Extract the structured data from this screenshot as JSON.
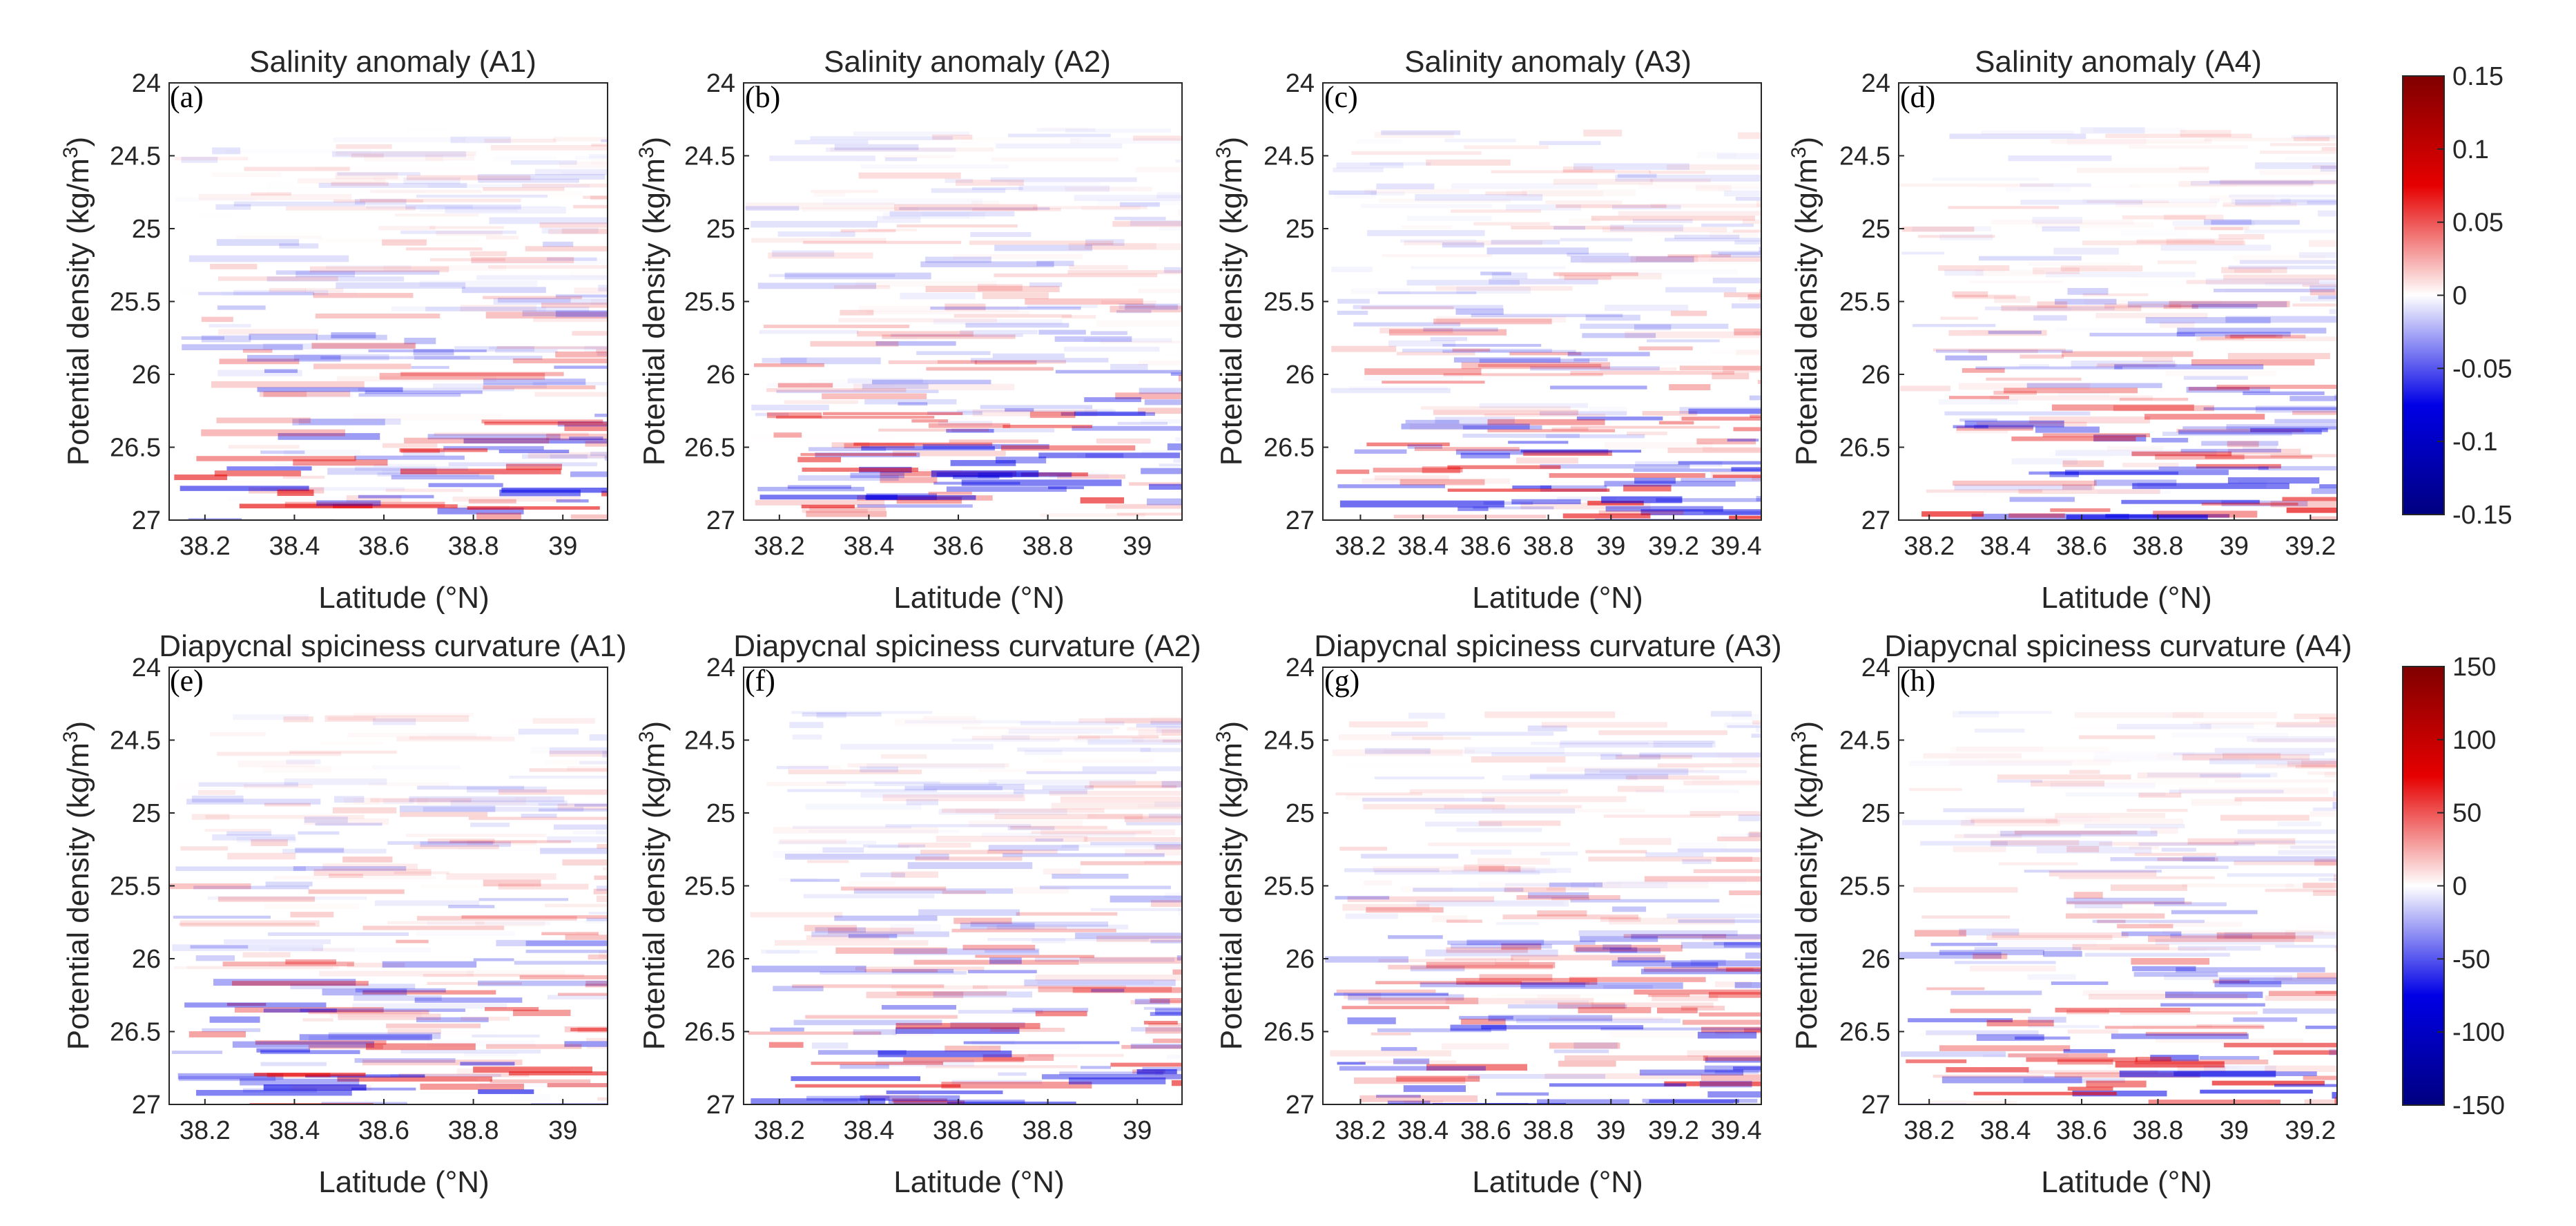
{
  "chart_data": [
    {
      "type": "heatmap",
      "panel": "(a)",
      "title": "Salinity anomaly (A1)",
      "xlabel": "Latitude (°N)",
      "ylabel": "Potential density (kg/m³)",
      "xlim": [
        38.12,
        39.1
      ],
      "ylim": [
        24,
        27
      ],
      "xticks": [
        "38.2",
        "38.4",
        "38.6",
        "38.8",
        "39"
      ],
      "yticks": [
        "24",
        "24.5",
        "25",
        "25.5",
        "26",
        "26.5",
        "27"
      ],
      "colorbar": "salinity"
    },
    {
      "type": "heatmap",
      "panel": "(b)",
      "title": "Salinity anomaly (A2)",
      "xlabel": "Latitude (°N)",
      "ylabel": "Potential density (kg/m³)",
      "xlim": [
        38.12,
        39.1
      ],
      "ylim": [
        24,
        27
      ],
      "xticks": [
        "38.2",
        "38.4",
        "38.6",
        "38.8",
        "39"
      ],
      "yticks": [
        "24",
        "24.5",
        "25",
        "25.5",
        "26",
        "26.5",
        "27"
      ],
      "colorbar": "salinity"
    },
    {
      "type": "heatmap",
      "panel": "(c)",
      "title": "Salinity anomaly (A3)",
      "xlabel": "Latitude (°N)",
      "ylabel": "Potential density (kg/m³)",
      "xlim": [
        38.08,
        39.48
      ],
      "ylim": [
        24,
        27
      ],
      "xticks": [
        "38.2",
        "38.4",
        "38.6",
        "38.8",
        "39",
        "39.2",
        "39.4"
      ],
      "yticks": [
        "24",
        "24.5",
        "25",
        "25.5",
        "26",
        "26.5",
        "27"
      ],
      "colorbar": "salinity"
    },
    {
      "type": "heatmap",
      "panel": "(d)",
      "title": "Salinity anomaly (A4)",
      "xlabel": "Latitude (°N)",
      "ylabel": "Potential density (kg/m³)",
      "xlim": [
        38.12,
        39.27
      ],
      "ylim": [
        24,
        27
      ],
      "xticks": [
        "38.2",
        "38.4",
        "38.6",
        "38.8",
        "39",
        "39.2"
      ],
      "yticks": [
        "24",
        "24.5",
        "25",
        "25.5",
        "26",
        "26.5",
        "27"
      ],
      "colorbar": "salinity"
    },
    {
      "type": "heatmap",
      "panel": "(e)",
      "title": "Diapycnal spiciness curvature (A1)",
      "xlabel": "Latitude (°N)",
      "ylabel": "Potential density (kg/m³)",
      "xlim": [
        38.12,
        39.1
      ],
      "ylim": [
        24,
        27
      ],
      "xticks": [
        "38.2",
        "38.4",
        "38.6",
        "38.8",
        "39"
      ],
      "yticks": [
        "24",
        "24.5",
        "25",
        "25.5",
        "26",
        "26.5",
        "27"
      ],
      "colorbar": "curvature"
    },
    {
      "type": "heatmap",
      "panel": "(f)",
      "title": "Diapycnal spiciness curvature (A2)",
      "xlabel": "Latitude (°N)",
      "ylabel": "Potential density (kg/m³)",
      "xlim": [
        38.12,
        39.1
      ],
      "ylim": [
        24,
        27
      ],
      "xticks": [
        "38.2",
        "38.4",
        "38.6",
        "38.8",
        "39"
      ],
      "yticks": [
        "24",
        "24.5",
        "25",
        "25.5",
        "26",
        "26.5",
        "27"
      ],
      "colorbar": "curvature"
    },
    {
      "type": "heatmap",
      "panel": "(g)",
      "title": "Diapycnal spiciness curvature (A3)",
      "xlabel": "Latitude (°N)",
      "ylabel": "Potential density (kg/m³)",
      "xlim": [
        38.08,
        39.48
      ],
      "ylim": [
        24,
        27
      ],
      "xticks": [
        "38.2",
        "38.4",
        "38.6",
        "38.8",
        "39",
        "39.2",
        "39.4"
      ],
      "yticks": [
        "24",
        "24.5",
        "25",
        "25.5",
        "26",
        "26.5",
        "27"
      ],
      "colorbar": "curvature"
    },
    {
      "type": "heatmap",
      "panel": "(h)",
      "title": "Diapycnal spiciness curvature (A4)",
      "xlabel": "Latitude (°N)",
      "ylabel": "Potential density (kg/m³)",
      "xlim": [
        38.12,
        39.27
      ],
      "ylim": [
        24,
        27
      ],
      "xticks": [
        "38.2",
        "38.4",
        "38.6",
        "38.8",
        "39",
        "39.2"
      ],
      "yticks": [
        "24",
        "24.5",
        "25",
        "25.5",
        "26",
        "26.5",
        "27"
      ],
      "colorbar": "curvature"
    }
  ],
  "colorbars": {
    "salinity": {
      "min": -0.15,
      "max": 0.15,
      "ticks": [
        "0.15",
        "0.1",
        "0.05",
        "0",
        "-0.05",
        "-0.1",
        "-0.15"
      ]
    },
    "curvature": {
      "min": -150,
      "max": 150,
      "ticks": [
        "150",
        "100",
        "50",
        "0",
        "-50",
        "-100",
        "-150"
      ]
    }
  },
  "colors": {
    "positive": "#e60000",
    "negative": "#0000e6",
    "max": "#800000",
    "min": "#000080",
    "neutral": "#ffffff",
    "axis": "#262626"
  }
}
